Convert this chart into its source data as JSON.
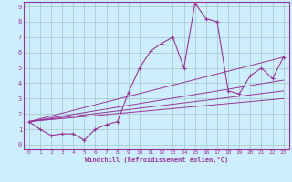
{
  "xlabel": "Windchill (Refroidissement éolien,°C)",
  "line_color": "#993399",
  "bg_color": "#cceeff",
  "grid_color": "#aacccc",
  "xlim": [
    -0.5,
    23.5
  ],
  "ylim": [
    -0.3,
    9.3
  ],
  "xticks": [
    0,
    1,
    2,
    3,
    4,
    5,
    6,
    7,
    8,
    9,
    10,
    11,
    12,
    13,
    14,
    15,
    16,
    17,
    18,
    19,
    20,
    21,
    22,
    23
  ],
  "yticks": [
    0,
    1,
    2,
    3,
    4,
    5,
    6,
    7,
    8,
    9
  ],
  "main_line_x": [
    0,
    1,
    2,
    3,
    4,
    5,
    6,
    7,
    8,
    9,
    10,
    11,
    12,
    13,
    14,
    15,
    16,
    17,
    18,
    19,
    20,
    21,
    22,
    23
  ],
  "main_line_y": [
    1.5,
    1.0,
    0.6,
    0.7,
    0.7,
    0.3,
    1.0,
    1.3,
    1.5,
    3.4,
    5.0,
    6.1,
    6.6,
    7.0,
    5.0,
    9.2,
    8.2,
    8.0,
    3.5,
    3.3,
    4.5,
    5.0,
    4.3,
    5.7
  ],
  "line2_x": [
    0,
    23
  ],
  "line2_y": [
    1.5,
    5.7
  ],
  "line3_x": [
    0,
    23
  ],
  "line3_y": [
    1.5,
    4.2
  ],
  "line4_x": [
    0,
    23
  ],
  "line4_y": [
    1.5,
    3.5
  ],
  "line5_x": [
    0,
    23
  ],
  "line5_y": [
    1.5,
    3.0
  ]
}
